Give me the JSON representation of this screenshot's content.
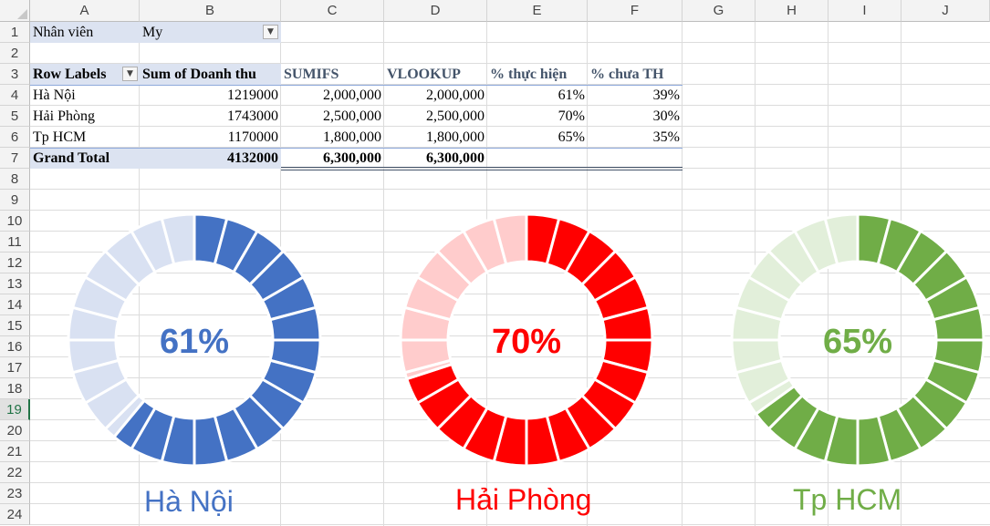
{
  "columns": [
    "A",
    "B",
    "C",
    "D",
    "E",
    "F",
    "G",
    "H",
    "I",
    "J"
  ],
  "rows": [
    "1",
    "2",
    "3",
    "4",
    "5",
    "6",
    "7",
    "8",
    "9",
    "10",
    "11",
    "12",
    "13",
    "14",
    "15",
    "16",
    "17",
    "18",
    "19",
    "20",
    "21",
    "22",
    "23",
    "24"
  ],
  "selected_row": "19",
  "filter": {
    "label": "Nhân viên",
    "value": "My",
    "icon": "filter-dropdown-icon"
  },
  "pivot": {
    "headers": [
      "Row Labels",
      "Sum of Doanh thu",
      "SUMIFS",
      "VLOOKUP",
      "% thực hiện",
      "% chưa TH"
    ],
    "rows": [
      {
        "label": "Hà Nội",
        "sum": "1219000",
        "sumifs": "2,000,000",
        "vlookup": "2,000,000",
        "pct_done": "61%",
        "pct_left": "39%"
      },
      {
        "label": "Hải Phòng",
        "sum": "1743000",
        "sumifs": "2,500,000",
        "vlookup": "2,500,000",
        "pct_done": "70%",
        "pct_left": "30%"
      },
      {
        "label": "Tp HCM",
        "sum": "1170000",
        "sumifs": "1,800,000",
        "vlookup": "1,800,000",
        "pct_done": "65%",
        "pct_left": "35%"
      }
    ],
    "total": {
      "label": "Grand Total",
      "sum": "4132000",
      "sumifs": "6,300,000",
      "vlookup": "6,300,000"
    }
  },
  "chart_data": [
    {
      "type": "pie",
      "title": "Hà Nội",
      "values": [
        61,
        39
      ],
      "center_label": "61%",
      "color": "#4472c4",
      "light_color": "#d9e1f2",
      "segments": 24
    },
    {
      "type": "pie",
      "title": "Hải Phòng",
      "values": [
        70,
        30
      ],
      "center_label": "70%",
      "color": "#ff0000",
      "light_color": "#ffcccc",
      "segments": 24
    },
    {
      "type": "pie",
      "title": "Tp HCM",
      "values": [
        65,
        35
      ],
      "center_label": "65%",
      "color": "#70ad47",
      "light_color": "#e2efda",
      "segments": 24
    }
  ]
}
